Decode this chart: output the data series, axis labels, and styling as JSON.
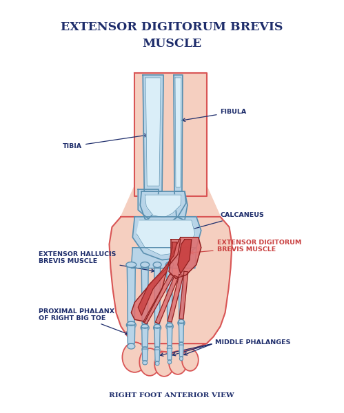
{
  "title_line1": "EXTENSOR DIGITORUM BREVIS",
  "title_line2": "MUSCLE",
  "subtitle": "RIGHT FOOT ANTERIOR VIEW",
  "title_color": "#1e2d6b",
  "subtitle_color": "#1e2d6b",
  "bg_color": "#ffffff",
  "skin_fill": "#f5cfc0",
  "skin_stroke": "#d95555",
  "bone_fill": "#b8d4e8",
  "bone_fill_light": "#daeef8",
  "bone_stroke": "#5a8faf",
  "bone_stroke_dark": "#3a6f8f",
  "muscle_red": "#c94040",
  "muscle_red_light": "#e07070",
  "muscle_stroke": "#8b2020",
  "label_dark": "#1e2d6b",
  "label_red": "#c94040",
  "arrow_color": "#1e2d6b"
}
